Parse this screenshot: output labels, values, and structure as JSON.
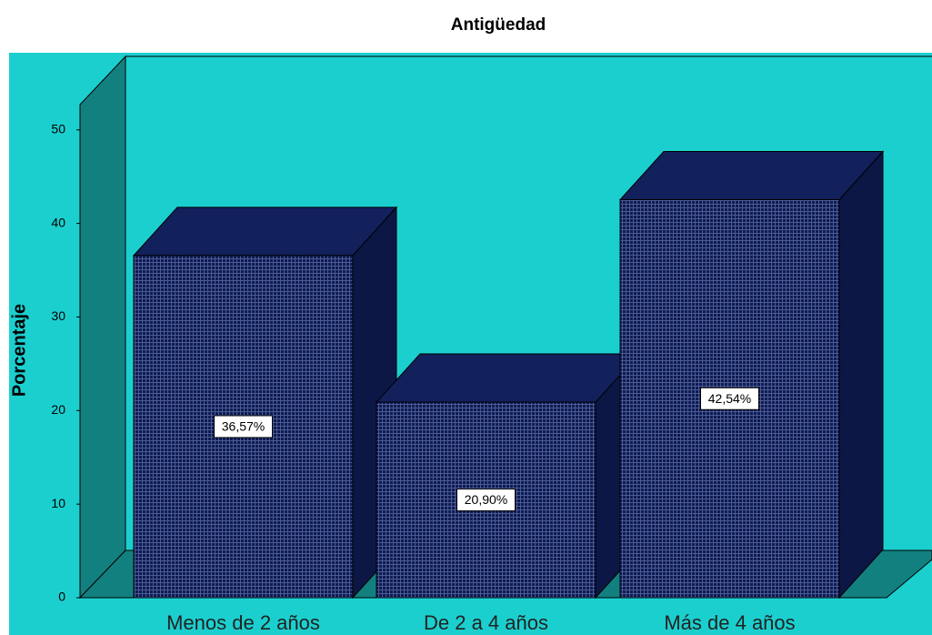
{
  "chart_data": {
    "type": "bar3d",
    "title": "Antigüedad",
    "y_label": "Porcentaje",
    "categories": [
      "Menos de 2 años",
      "De 2 a 4 años",
      "Más de 4 años"
    ],
    "values": [
      36.57,
      20.9,
      42.54
    ],
    "value_labels": [
      "36,57%",
      "20,90%",
      "42,54%"
    ],
    "color": "#0e1a50",
    "ylim": [
      0,
      52.7
    ],
    "yticks": [
      0,
      10,
      20,
      30,
      40,
      50
    ],
    "grid": false
  }
}
